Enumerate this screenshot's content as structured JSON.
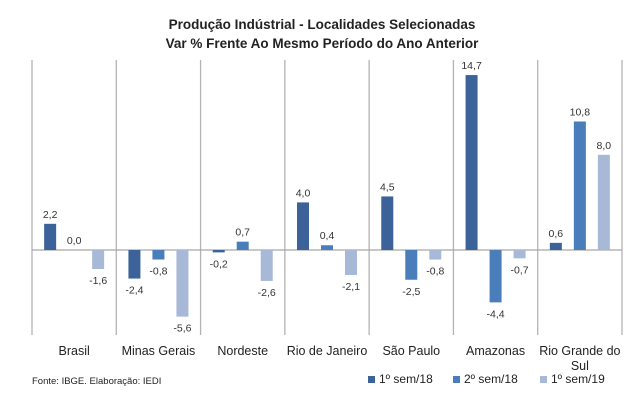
{
  "chart_data": {
    "type": "bar",
    "title": "Produção Indústrial - Localidades Selecionadas",
    "subtitle": "Var % Frente Ao Mesmo Período do Ano Anterior",
    "xlabel": "",
    "ylabel": "",
    "categories": [
      "Brasil",
      "Minas Gerais",
      "Nordeste",
      "Rio de Janeiro",
      "São Paulo",
      "Amazonas",
      "Rio Grande do Sul"
    ],
    "series": [
      {
        "name": "1º sem/18",
        "color": "#3B6399",
        "values": [
          2.2,
          -2.4,
          -0.2,
          4.0,
          4.5,
          14.7,
          0.6
        ],
        "labels": [
          "2,2",
          "-2,4",
          "-0,2",
          "4,0",
          "4,5",
          "14,7",
          "0,6"
        ]
      },
      {
        "name": "2º sem/18",
        "color": "#4A7EBB",
        "values": [
          0.0,
          -0.8,
          0.7,
          0.4,
          -2.5,
          -4.4,
          10.8
        ],
        "labels": [
          "0,0",
          "-0,8",
          "0,7",
          "0,4",
          "-2,5",
          "-4,4",
          "10,8"
        ]
      },
      {
        "name": "1º sem/19",
        "color": "#A7B9D7",
        "values": [
          -1.6,
          -5.6,
          -2.6,
          -2.1,
          -0.8,
          -0.7,
          8.0
        ],
        "labels": [
          "-1,6",
          "-5,6",
          "-2,6",
          "-2,1",
          "-0,8",
          "-0,7",
          "8,0"
        ]
      }
    ],
    "ylim": [
      -7.2,
      16.1
    ],
    "grid": false,
    "legend_position": "bottom-right",
    "source": "Fonte: IBGE. Elaboração: IEDI"
  }
}
